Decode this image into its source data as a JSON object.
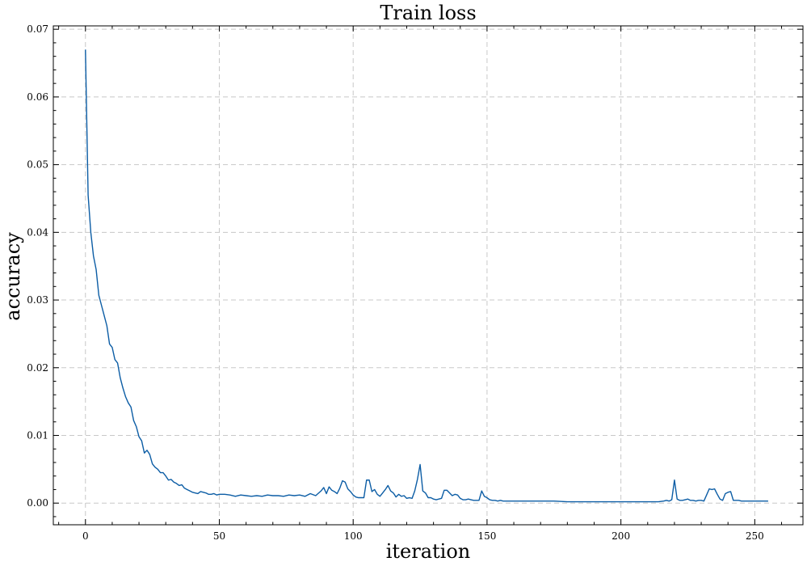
{
  "chart_data": {
    "type": "line",
    "title": "Train loss",
    "xlabel": "iteration",
    "ylabel": "accuracy",
    "xlim": [
      -12,
      268
    ],
    "ylim": [
      -0.0032,
      0.0705
    ],
    "xticks": [
      0,
      50,
      100,
      150,
      200,
      250
    ],
    "xtick_labels": [
      "0",
      "50",
      "100",
      "150",
      "200",
      "250"
    ],
    "yticks": [
      0.0,
      0.01,
      0.02,
      0.03,
      0.04,
      0.05,
      0.06,
      0.07
    ],
    "ytick_labels": [
      "0.00",
      "0.01",
      "0.02",
      "0.03",
      "0.04",
      "0.05",
      "0.06",
      "0.07"
    ],
    "grid": true,
    "color": "#0C5DA5",
    "series": [
      {
        "x": [
          0,
          1,
          2,
          3,
          4,
          5,
          6,
          7,
          8,
          9,
          10,
          11,
          12,
          13,
          14,
          15,
          16,
          17,
          18,
          19,
          20,
          21,
          22,
          23,
          24,
          25,
          26,
          27,
          28,
          29,
          30,
          31,
          32,
          33,
          34,
          35,
          36,
          37,
          38,
          39,
          40,
          41,
          42,
          43,
          44,
          45,
          46,
          47,
          48,
          49,
          50,
          52,
          54,
          56,
          58,
          60,
          62,
          64,
          66,
          68,
          70,
          72,
          74,
          76,
          78,
          80,
          82,
          84,
          86,
          88,
          89,
          90,
          91,
          92,
          93,
          94,
          95,
          96,
          97,
          98,
          99,
          100,
          101,
          102,
          103,
          104,
          105,
          106,
          107,
          108,
          109,
          110,
          111,
          112,
          113,
          114,
          115,
          116,
          117,
          118,
          119,
          120,
          121,
          122,
          123,
          124,
          125,
          126,
          127,
          128,
          129,
          130,
          131,
          132,
          133,
          134,
          135,
          136,
          137,
          138,
          139,
          140,
          141,
          142,
          143,
          144,
          145,
          146,
          147,
          148,
          149,
          150,
          151,
          152,
          153,
          154,
          155,
          156,
          157,
          158,
          160,
          165,
          170,
          175,
          180,
          185,
          190,
          195,
          200,
          205,
          210,
          212,
          214,
          216,
          217,
          218,
          219,
          220,
          221,
          222,
          223,
          224,
          225,
          226,
          227,
          228,
          229,
          230,
          231,
          232,
          233,
          234,
          235,
          236,
          237,
          238,
          239,
          240,
          241,
          242,
          243,
          244,
          245,
          246,
          248,
          250,
          252,
          254,
          255
        ],
        "y": [
          0.067,
          0.0455,
          0.04,
          0.0365,
          0.0345,
          0.0307,
          0.0292,
          0.0277,
          0.0262,
          0.0235,
          0.023,
          0.0212,
          0.0207,
          0.0185,
          0.017,
          0.0157,
          0.0148,
          0.0142,
          0.0122,
          0.0113,
          0.0098,
          0.0092,
          0.0074,
          0.0078,
          0.0072,
          0.0058,
          0.0053,
          0.005,
          0.0045,
          0.0045,
          0.004,
          0.0034,
          0.0035,
          0.0031,
          0.0029,
          0.0026,
          0.0027,
          0.0022,
          0.002,
          0.0018,
          0.0016,
          0.0015,
          0.0014,
          0.0017,
          0.0016,
          0.0015,
          0.0013,
          0.0013,
          0.0014,
          0.0012,
          0.0013,
          0.0013,
          0.0012,
          0.001,
          0.0012,
          0.0011,
          0.001,
          0.0011,
          0.001,
          0.0012,
          0.0011,
          0.0011,
          0.001,
          0.0012,
          0.0011,
          0.0012,
          0.001,
          0.0014,
          0.0011,
          0.0018,
          0.0023,
          0.0014,
          0.0024,
          0.0019,
          0.0017,
          0.0014,
          0.0022,
          0.0033,
          0.0031,
          0.0021,
          0.0017,
          0.0012,
          0.0009,
          0.0008,
          0.0008,
          0.0008,
          0.0034,
          0.0034,
          0.0017,
          0.002,
          0.0013,
          0.001,
          0.0015,
          0.002,
          0.0026,
          0.0018,
          0.0015,
          0.0009,
          0.0013,
          0.001,
          0.0011,
          0.0007,
          0.0008,
          0.0007,
          0.0018,
          0.0035,
          0.0057,
          0.0018,
          0.0015,
          0.0008,
          0.0008,
          0.0006,
          0.0005,
          0.0006,
          0.0007,
          0.0019,
          0.0019,
          0.0015,
          0.0011,
          0.0013,
          0.0012,
          0.0007,
          0.0005,
          0.0005,
          0.0006,
          0.0005,
          0.0004,
          0.0004,
          0.0004,
          0.0018,
          0.001,
          0.0008,
          0.0005,
          0.0004,
          0.0004,
          0.0003,
          0.0004,
          0.0003,
          0.0003,
          0.0003,
          0.0003,
          0.0003,
          0.0003,
          0.0003,
          0.0002,
          0.0002,
          0.0002,
          0.0002,
          0.0002,
          0.0002,
          0.0002,
          0.0002,
          0.0002,
          0.0003,
          0.0004,
          0.0003,
          0.0005,
          0.0034,
          0.0006,
          0.0004,
          0.0004,
          0.0005,
          0.0006,
          0.0004,
          0.0004,
          0.0003,
          0.0004,
          0.0004,
          0.0003,
          0.0012,
          0.0021,
          0.002,
          0.0021,
          0.0013,
          0.0006,
          0.0004,
          0.0014,
          0.0016,
          0.0017,
          0.0004,
          0.0004,
          0.0004,
          0.0003,
          0.0003,
          0.0003,
          0.0003,
          0.0003,
          0.0003,
          0.0003
        ]
      }
    ]
  }
}
